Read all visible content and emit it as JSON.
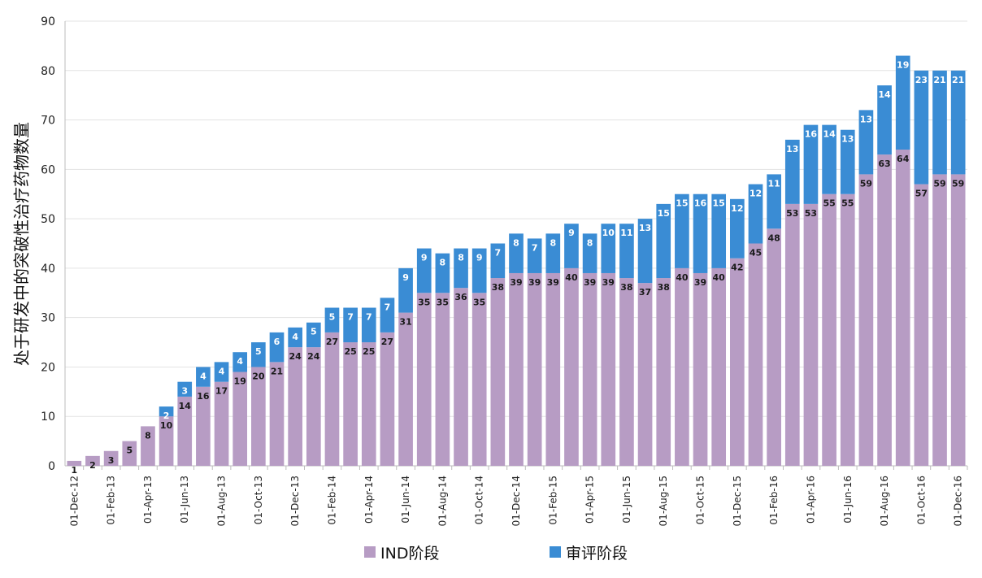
{
  "chart_data": {
    "type": "bar",
    "stacked": true,
    "ylabel": "处于研发中的突破性治疗药物数量",
    "xlabel": "",
    "ylim": [
      0,
      90
    ],
    "yticks": [
      0,
      10,
      20,
      30,
      40,
      50,
      60,
      70,
      80,
      90
    ],
    "grid": true,
    "legend_position": "bottom",
    "x_tick_labels": [
      "01-Dec-12",
      "01-Feb-13",
      "01-Apr-13",
      "01-Jun-13",
      "01-Aug-13",
      "01-Oct-13",
      "01-Dec-13",
      "01-Feb-14",
      "01-Apr-14",
      "01-Jun-14",
      "01-Aug-14",
      "01-Oct-14",
      "01-Dec-14",
      "01-Feb-15",
      "01-Apr-15",
      "01-Jun-15",
      "01-Aug-15",
      "01-Oct-15",
      "01-Dec-15",
      "01-Feb-16",
      "01-Apr-16",
      "01-Jun-16",
      "01-Aug-16",
      "01-Oct-16",
      "01-Dec-16"
    ],
    "categories": [
      "01-Dec-12",
      "01-Jan-13",
      "01-Feb-13",
      "01-Mar-13",
      "01-Apr-13",
      "01-May-13",
      "01-Jun-13",
      "01-Jul-13",
      "01-Aug-13",
      "01-Sep-13",
      "01-Oct-13",
      "01-Nov-13",
      "01-Dec-13",
      "01-Jan-14",
      "01-Feb-14",
      "01-Mar-14",
      "01-Apr-14",
      "01-May-14",
      "01-Jun-14",
      "01-Jul-14",
      "01-Aug-14",
      "01-Sep-14",
      "01-Oct-14",
      "01-Nov-14",
      "01-Dec-14",
      "01-Jan-15",
      "01-Feb-15",
      "01-Mar-15",
      "01-Apr-15",
      "01-May-15",
      "01-Jun-15",
      "01-Jul-15",
      "01-Aug-15",
      "01-Sep-15",
      "01-Oct-15",
      "01-Nov-15",
      "01-Dec-15",
      "01-Jan-16",
      "01-Feb-16",
      "01-Mar-16",
      "01-Apr-16",
      "01-May-16",
      "01-Jun-16",
      "01-Jul-16",
      "01-Aug-16",
      "01-Sep-16",
      "01-Oct-16",
      "01-Nov-16",
      "01-Dec-16"
    ],
    "series": [
      {
        "name": "IND阶段",
        "color": "#b79cc4",
        "values": [
          1,
          2,
          3,
          5,
          8,
          10,
          14,
          16,
          17,
          19,
          20,
          21,
          24,
          24,
          27,
          25,
          25,
          27,
          31,
          35,
          35,
          36,
          35,
          38,
          39,
          39,
          39,
          40,
          39,
          39,
          38,
          37,
          38,
          40,
          39,
          40,
          42,
          45,
          48,
          53,
          53,
          55,
          55,
          59,
          63,
          64,
          57,
          59,
          59
        ]
      },
      {
        "name": "审评阶段",
        "color": "#3a8cd4",
        "values": [
          0,
          0,
          0,
          0,
          0,
          2,
          3,
          4,
          4,
          4,
          5,
          6,
          4,
          5,
          5,
          7,
          7,
          7,
          9,
          9,
          8,
          8,
          9,
          7,
          8,
          7,
          8,
          9,
          8,
          10,
          11,
          13,
          15,
          15,
          16,
          15,
          12,
          12,
          11,
          13,
          16,
          14,
          13,
          13,
          14,
          19,
          23,
          21,
          21
        ]
      }
    ]
  }
}
